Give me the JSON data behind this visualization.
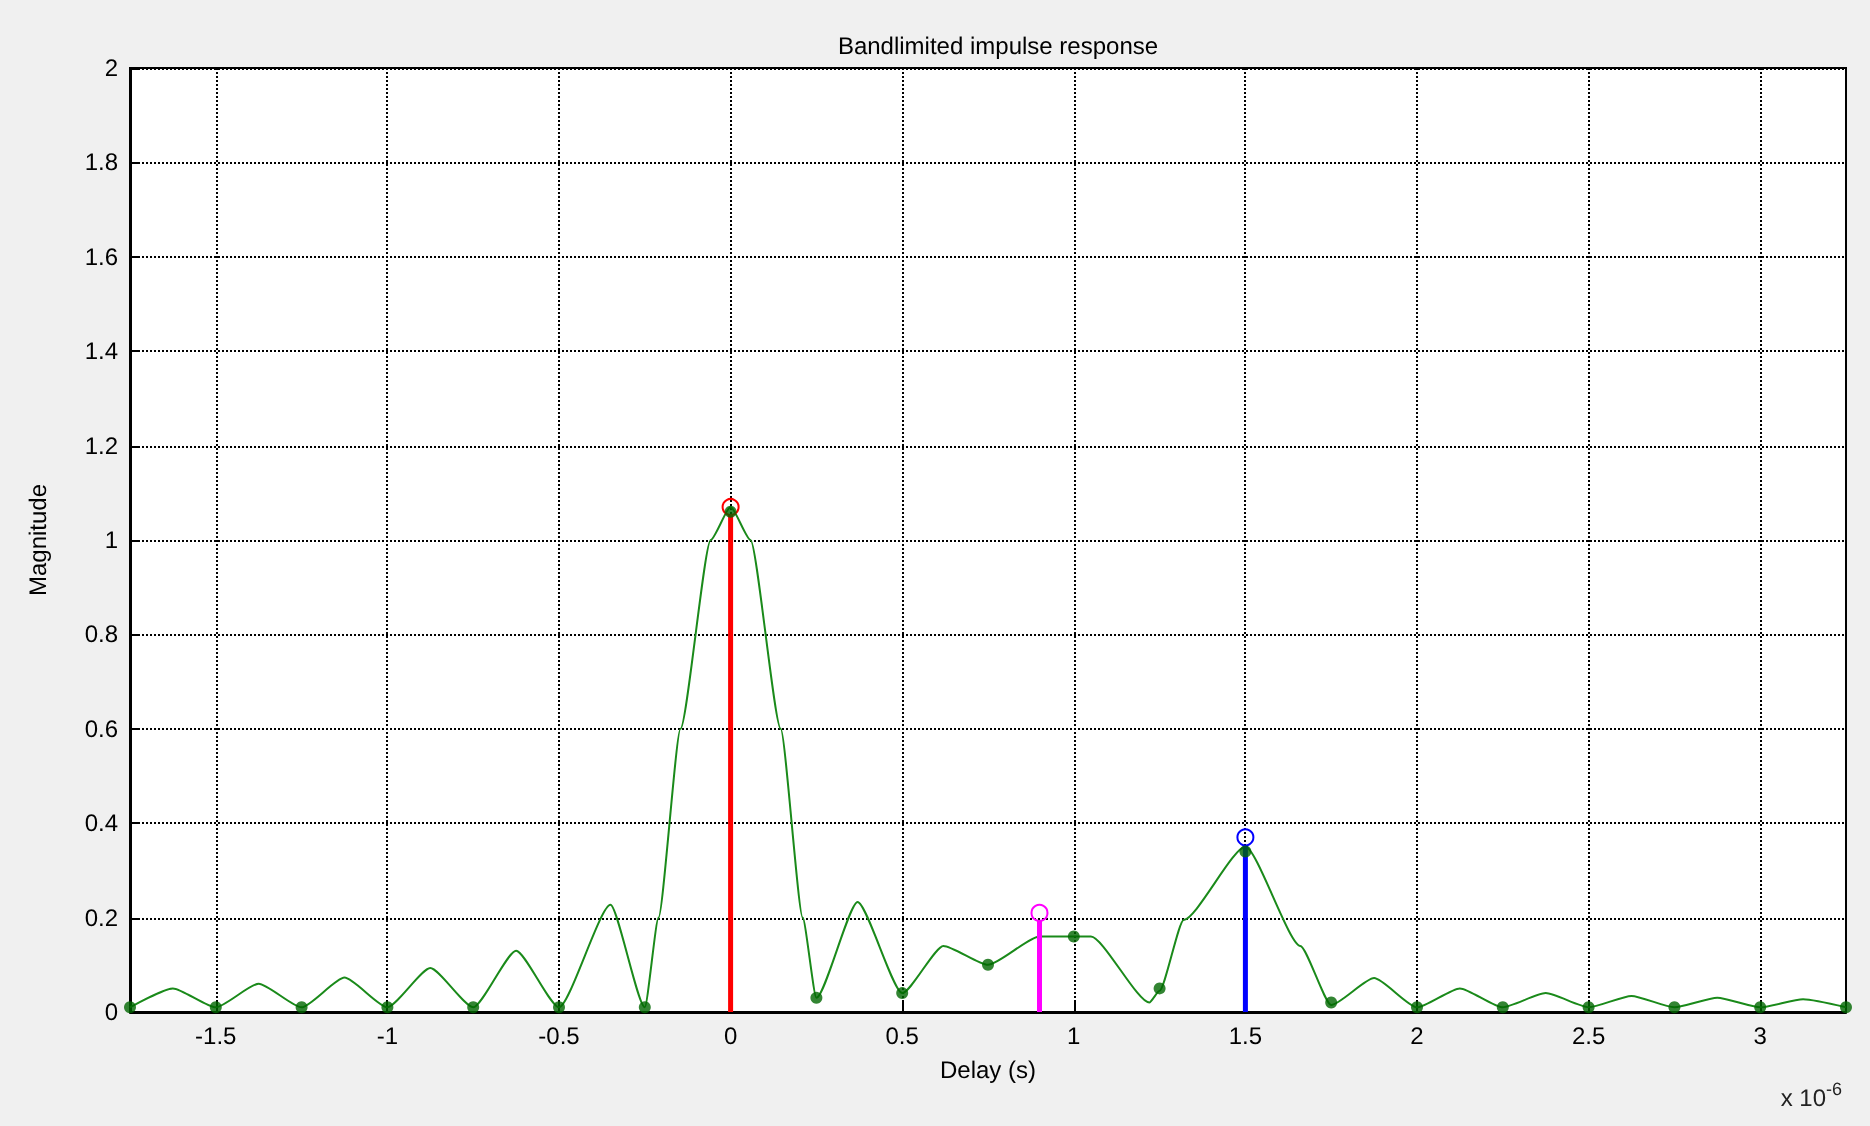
{
  "chart_data": {
    "type": "line",
    "title": "Bandlimited impulse response",
    "xlabel": "Delay (s)",
    "ylabel": "Magnitude",
    "annotations": [
      "x 10$^{-6}$"
    ],
    "xlim": [
      -1.75,
      3.25
    ],
    "xticks": [
      -1.5,
      -1,
      -0.5,
      0,
      0.5,
      1,
      1.5,
      2,
      2.5,
      3
    ],
    "ylim": [
      0,
      2
    ],
    "yticks": [
      0,
      0.2,
      0.4,
      0.6,
      0.8,
      1,
      1.2,
      1.4,
      1.6,
      1.8,
      2
    ],
    "grid": true,
    "series": [
      {
        "marker": "none",
        "color": "#1a8a1a",
        "x": [
          -1.75,
          -1.625,
          -1.5,
          -1.375,
          -1.25,
          -1.125,
          -1,
          -0.875,
          -0.75,
          -0.625,
          -0.5,
          -0.35,
          -0.25,
          -0.21,
          -0.146,
          -0.058,
          0,
          0.058,
          0.146,
          0.21,
          0.25,
          0.37,
          0.5,
          0.62,
          0.75,
          0.9,
          1.05,
          1.22,
          1.25,
          1.32,
          1.5,
          1.66,
          1.75,
          1.875,
          2,
          2.125,
          2.25,
          2.375,
          2.5,
          2.625,
          2.75,
          2.875,
          3,
          3.125,
          3.25
        ],
        "values": [
          0.01,
          0.05,
          0.01,
          0.06,
          0.01,
          0.073,
          0.01,
          0.093,
          0.01,
          0.13,
          0.01,
          0.227,
          0.01,
          0.2,
          0.6,
          1.0,
          1.07,
          1.0,
          0.6,
          0.2,
          0.03,
          0.233,
          0.04,
          0.14,
          0.1,
          0.16,
          0.16,
          0.02,
          0.045,
          0.195,
          0.35,
          0.14,
          0.015,
          0.072,
          0.01,
          0.05,
          0.01,
          0.04,
          0.01,
          0.034,
          0.01,
          0.03,
          0.01,
          0.027,
          0.01
        ]
      },
      {
        "type": "scatter",
        "marker": "circle",
        "color": "#006600",
        "x": [
          -1.75,
          -1.5,
          -1.25,
          -1,
          -0.75,
          -0.5,
          -0.25,
          0,
          0.25,
          0.5,
          0.75,
          1,
          1.25,
          1.5,
          1.75,
          2,
          2.25,
          2.5,
          2.75,
          3,
          3.25
        ],
        "values": [
          0.01,
          0.01,
          0.01,
          0.01,
          0.01,
          0.01,
          0.01,
          1.06,
          0.03,
          0.04,
          0.1,
          0.16,
          0.05,
          0.34,
          0.02,
          0.01,
          0.01,
          0.01,
          0.01,
          0.01,
          0.01
        ]
      },
      {
        "type": "lollipop",
        "color": "#ff0000",
        "x": [
          0
        ],
        "values": [
          1.07
        ]
      },
      {
        "type": "lollipop",
        "color": "#ff00ff",
        "x": [
          0.9
        ],
        "values": [
          0.21
        ]
      },
      {
        "type": "lollipop",
        "color": "#0000ff",
        "x": [
          1.5
        ],
        "values": [
          0.37
        ]
      }
    ]
  }
}
